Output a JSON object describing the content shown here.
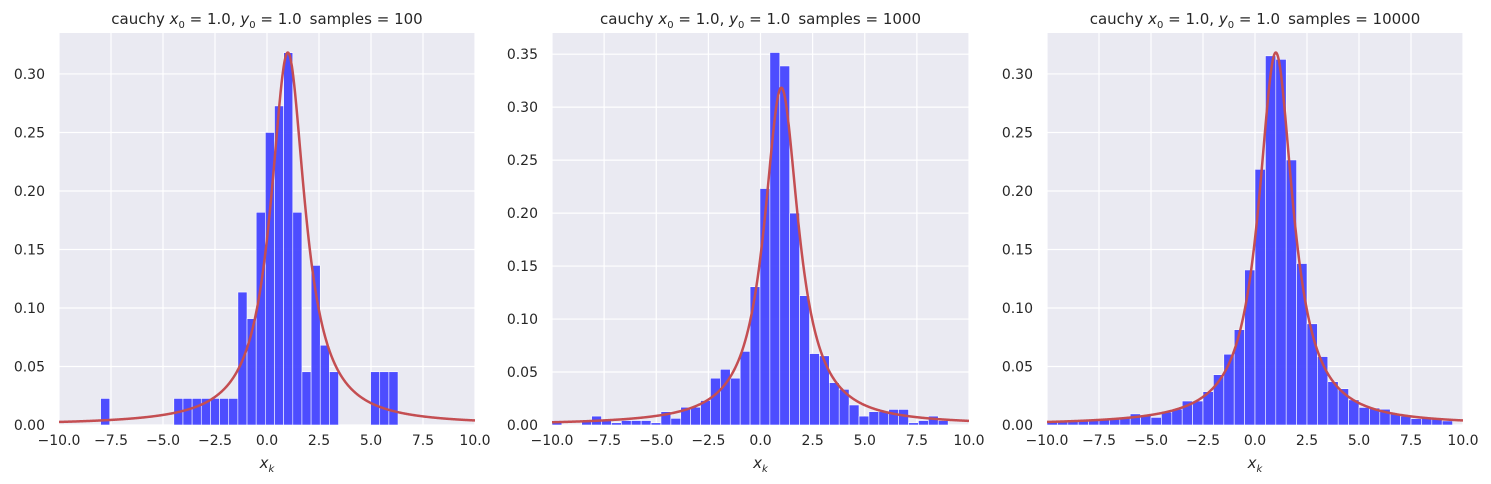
{
  "colors": {
    "background": "#EAEAF2",
    "grid": "#FFFFFF",
    "bar": "#4444FF",
    "curve": "#C44E52",
    "text": "#262626"
  },
  "chart_data": [
    {
      "type": "bar",
      "title": "cauchy x0 = 1.0, y0 = 1.0  samples = 100",
      "title_parts": {
        "prefix": "cauchy ",
        "x0": "= 1.0,",
        "y0": "= 1.0",
        "samples": "samples = 100"
      },
      "xlabel": "x_k",
      "xlim": [
        -10,
        10
      ],
      "ylim": [
        0,
        0.335
      ],
      "xticks": [
        -10.0,
        -7.5,
        -5.0,
        -2.5,
        0.0,
        2.5,
        5.0,
        7.5,
        10.0
      ],
      "xtick_labels": [
        "−10.0",
        "−7.5",
        "−5.0",
        "−2.5",
        "0.0",
        "2.5",
        "5.0",
        "7.5",
        "10.0"
      ],
      "yticks": [
        0.0,
        0.05,
        0.1,
        0.15,
        0.2,
        0.25,
        0.3
      ],
      "ytick_labels": [
        "0.00",
        "0.05",
        "0.10",
        "0.15",
        "0.20",
        "0.25",
        "0.30"
      ],
      "grid": true,
      "bin_width": 0.44,
      "bins": [
        {
          "x": -8.0,
          "y": 0.0227
        },
        {
          "x": -4.48,
          "y": 0.0227
        },
        {
          "x": -4.04,
          "y": 0.0227
        },
        {
          "x": -3.6,
          "y": 0.0227
        },
        {
          "x": -3.16,
          "y": 0.0227
        },
        {
          "x": -2.72,
          "y": 0.0227
        },
        {
          "x": -2.28,
          "y": 0.0227
        },
        {
          "x": -1.84,
          "y": 0.0227
        },
        {
          "x": -1.4,
          "y": 0.1136
        },
        {
          "x": -0.96,
          "y": 0.0909
        },
        {
          "x": -0.52,
          "y": 0.1818
        },
        {
          "x": -0.08,
          "y": 0.25
        },
        {
          "x": 0.36,
          "y": 0.2727
        },
        {
          "x": 0.8,
          "y": 0.3182
        },
        {
          "x": 1.24,
          "y": 0.1818
        },
        {
          "x": 1.68,
          "y": 0.0455
        },
        {
          "x": 2.12,
          "y": 0.1364
        },
        {
          "x": 2.56,
          "y": 0.0682
        },
        {
          "x": 3.0,
          "y": 0.0455
        },
        {
          "x": 4.98,
          "y": 0.0455
        },
        {
          "x": 5.42,
          "y": 0.0455
        },
        {
          "x": 5.86,
          "y": 0.0455
        }
      ],
      "curve": {
        "x0": 1.0,
        "y0": 1.0
      }
    },
    {
      "type": "bar",
      "title": "cauchy x0 = 1.0, y0 = 1.0  samples = 1000",
      "title_parts": {
        "prefix": "cauchy ",
        "x0": "= 1.0,",
        "y0": "= 1.0",
        "samples": "samples = 1000"
      },
      "xlabel": "x_k",
      "xlim": [
        -10,
        10
      ],
      "ylim": [
        0,
        0.37
      ],
      "xticks": [
        -10.0,
        -7.5,
        -5.0,
        -2.5,
        0.0,
        2.5,
        5.0,
        7.5,
        10.0
      ],
      "xtick_labels": [
        "−10.0",
        "−7.5",
        "−5.0",
        "−2.5",
        "0.0",
        "2.5",
        "5.0",
        "7.5",
        "10.0"
      ],
      "yticks": [
        0.0,
        0.05,
        0.1,
        0.15,
        0.2,
        0.25,
        0.3,
        0.35
      ],
      "ytick_labels": [
        "0.00",
        "0.05",
        "0.10",
        "0.15",
        "0.20",
        "0.25",
        "0.30",
        "0.35"
      ],
      "grid": true,
      "bin_width": 0.475,
      "bins": [
        {
          "x": -10.0,
          "y": 0.0042
        },
        {
          "x": -8.575,
          "y": 0.0042
        },
        {
          "x": -8.1,
          "y": 0.0084
        },
        {
          "x": -7.625,
          "y": 0.0042
        },
        {
          "x": -7.15,
          "y": 0.0021
        },
        {
          "x": -6.675,
          "y": 0.0042
        },
        {
          "x": -6.2,
          "y": 0.0042
        },
        {
          "x": -5.725,
          "y": 0.0042
        },
        {
          "x": -5.25,
          "y": 0.0021
        },
        {
          "x": -4.775,
          "y": 0.0126
        },
        {
          "x": -4.3,
          "y": 0.0063
        },
        {
          "x": -3.825,
          "y": 0.0168
        },
        {
          "x": -3.35,
          "y": 0.0168
        },
        {
          "x": -2.875,
          "y": 0.0231
        },
        {
          "x": -2.4,
          "y": 0.0442
        },
        {
          "x": -1.925,
          "y": 0.0526
        },
        {
          "x": -1.45,
          "y": 0.0442
        },
        {
          "x": -0.975,
          "y": 0.0695
        },
        {
          "x": -0.5,
          "y": 0.1305
        },
        {
          "x": -0.025,
          "y": 0.2232
        },
        {
          "x": 0.45,
          "y": 0.3516
        },
        {
          "x": 0.925,
          "y": 0.3389
        },
        {
          "x": 1.4,
          "y": 0.2
        },
        {
          "x": 1.875,
          "y": 0.1221
        },
        {
          "x": 2.35,
          "y": 0.0674
        },
        {
          "x": 2.825,
          "y": 0.0653
        },
        {
          "x": 3.3,
          "y": 0.04
        },
        {
          "x": 3.775,
          "y": 0.0337
        },
        {
          "x": 4.25,
          "y": 0.0189
        },
        {
          "x": 4.725,
          "y": 0.0084
        },
        {
          "x": 5.2,
          "y": 0.0126
        },
        {
          "x": 5.675,
          "y": 0.0126
        },
        {
          "x": 6.15,
          "y": 0.0147
        },
        {
          "x": 6.625,
          "y": 0.0147
        },
        {
          "x": 7.1,
          "y": 0.0021
        },
        {
          "x": 7.575,
          "y": 0.0042
        },
        {
          "x": 8.05,
          "y": 0.0084
        },
        {
          "x": 8.525,
          "y": 0.0042
        }
      ],
      "curve": {
        "x0": 1.0,
        "y0": 1.0
      }
    },
    {
      "type": "bar",
      "title": "cauchy x0 = 1.0, y0 = 1.0  samples = 10000",
      "title_parts": {
        "prefix": "cauchy ",
        "x0": "= 1.0,",
        "y0": "= 1.0",
        "samples": "samples = 10000"
      },
      "xlabel": "x_k",
      "xlim": [
        -10,
        10
      ],
      "ylim": [
        0,
        0.335
      ],
      "xticks": [
        -10.0,
        -7.5,
        -5.0,
        -2.5,
        0.0,
        2.5,
        5.0,
        7.5,
        10.0
      ],
      "xtick_labels": [
        "−10.0",
        "−7.5",
        "−5.0",
        "−2.5",
        "0.0",
        "2.5",
        "5.0",
        "7.5",
        "10.0"
      ],
      "yticks": [
        0.0,
        0.05,
        0.1,
        0.15,
        0.2,
        0.25,
        0.3
      ],
      "ytick_labels": [
        "0.00",
        "0.05",
        "0.10",
        "0.15",
        "0.20",
        "0.25",
        "0.30"
      ],
      "grid": true,
      "bin_width": 0.5,
      "bins": [
        {
          "x": -10.0,
          "y": 0.0035
        },
        {
          "x": -9.5,
          "y": 0.0035
        },
        {
          "x": -9.0,
          "y": 0.0035
        },
        {
          "x": -8.5,
          "y": 0.004
        },
        {
          "x": -8.0,
          "y": 0.0045
        },
        {
          "x": -7.5,
          "y": 0.005
        },
        {
          "x": -7.0,
          "y": 0.0055
        },
        {
          "x": -6.5,
          "y": 0.006
        },
        {
          "x": -6.0,
          "y": 0.0095
        },
        {
          "x": -5.5,
          "y": 0.0085
        },
        {
          "x": -5.0,
          "y": 0.0065
        },
        {
          "x": -4.5,
          "y": 0.011
        },
        {
          "x": -4.0,
          "y": 0.0135
        },
        {
          "x": -3.5,
          "y": 0.0205
        },
        {
          "x": -3.0,
          "y": 0.0205
        },
        {
          "x": -2.5,
          "y": 0.0285
        },
        {
          "x": -2.0,
          "y": 0.043
        },
        {
          "x": -1.5,
          "y": 0.0605
        },
        {
          "x": -1.0,
          "y": 0.0815
        },
        {
          "x": -0.5,
          "y": 0.1325
        },
        {
          "x": 0.0,
          "y": 0.2185
        },
        {
          "x": 0.5,
          "y": 0.3155
        },
        {
          "x": 1.0,
          "y": 0.3125
        },
        {
          "x": 1.5,
          "y": 0.2265
        },
        {
          "x": 2.0,
          "y": 0.138
        },
        {
          "x": 2.5,
          "y": 0.0865
        },
        {
          "x": 3.0,
          "y": 0.0585
        },
        {
          "x": 3.5,
          "y": 0.037
        },
        {
          "x": 4.0,
          "y": 0.031
        },
        {
          "x": 4.5,
          "y": 0.0215
        },
        {
          "x": 5.0,
          "y": 0.015
        },
        {
          "x": 5.5,
          "y": 0.0145
        },
        {
          "x": 6.0,
          "y": 0.0135
        },
        {
          "x": 6.5,
          "y": 0.01
        },
        {
          "x": 7.0,
          "y": 0.0075
        },
        {
          "x": 7.5,
          "y": 0.0055
        },
        {
          "x": 8.0,
          "y": 0.0065
        },
        {
          "x": 8.5,
          "y": 0.005
        },
        {
          "x": 9.0,
          "y": 0.0035
        }
      ],
      "curve": {
        "x0": 1.0,
        "y0": 1.0
      }
    }
  ]
}
